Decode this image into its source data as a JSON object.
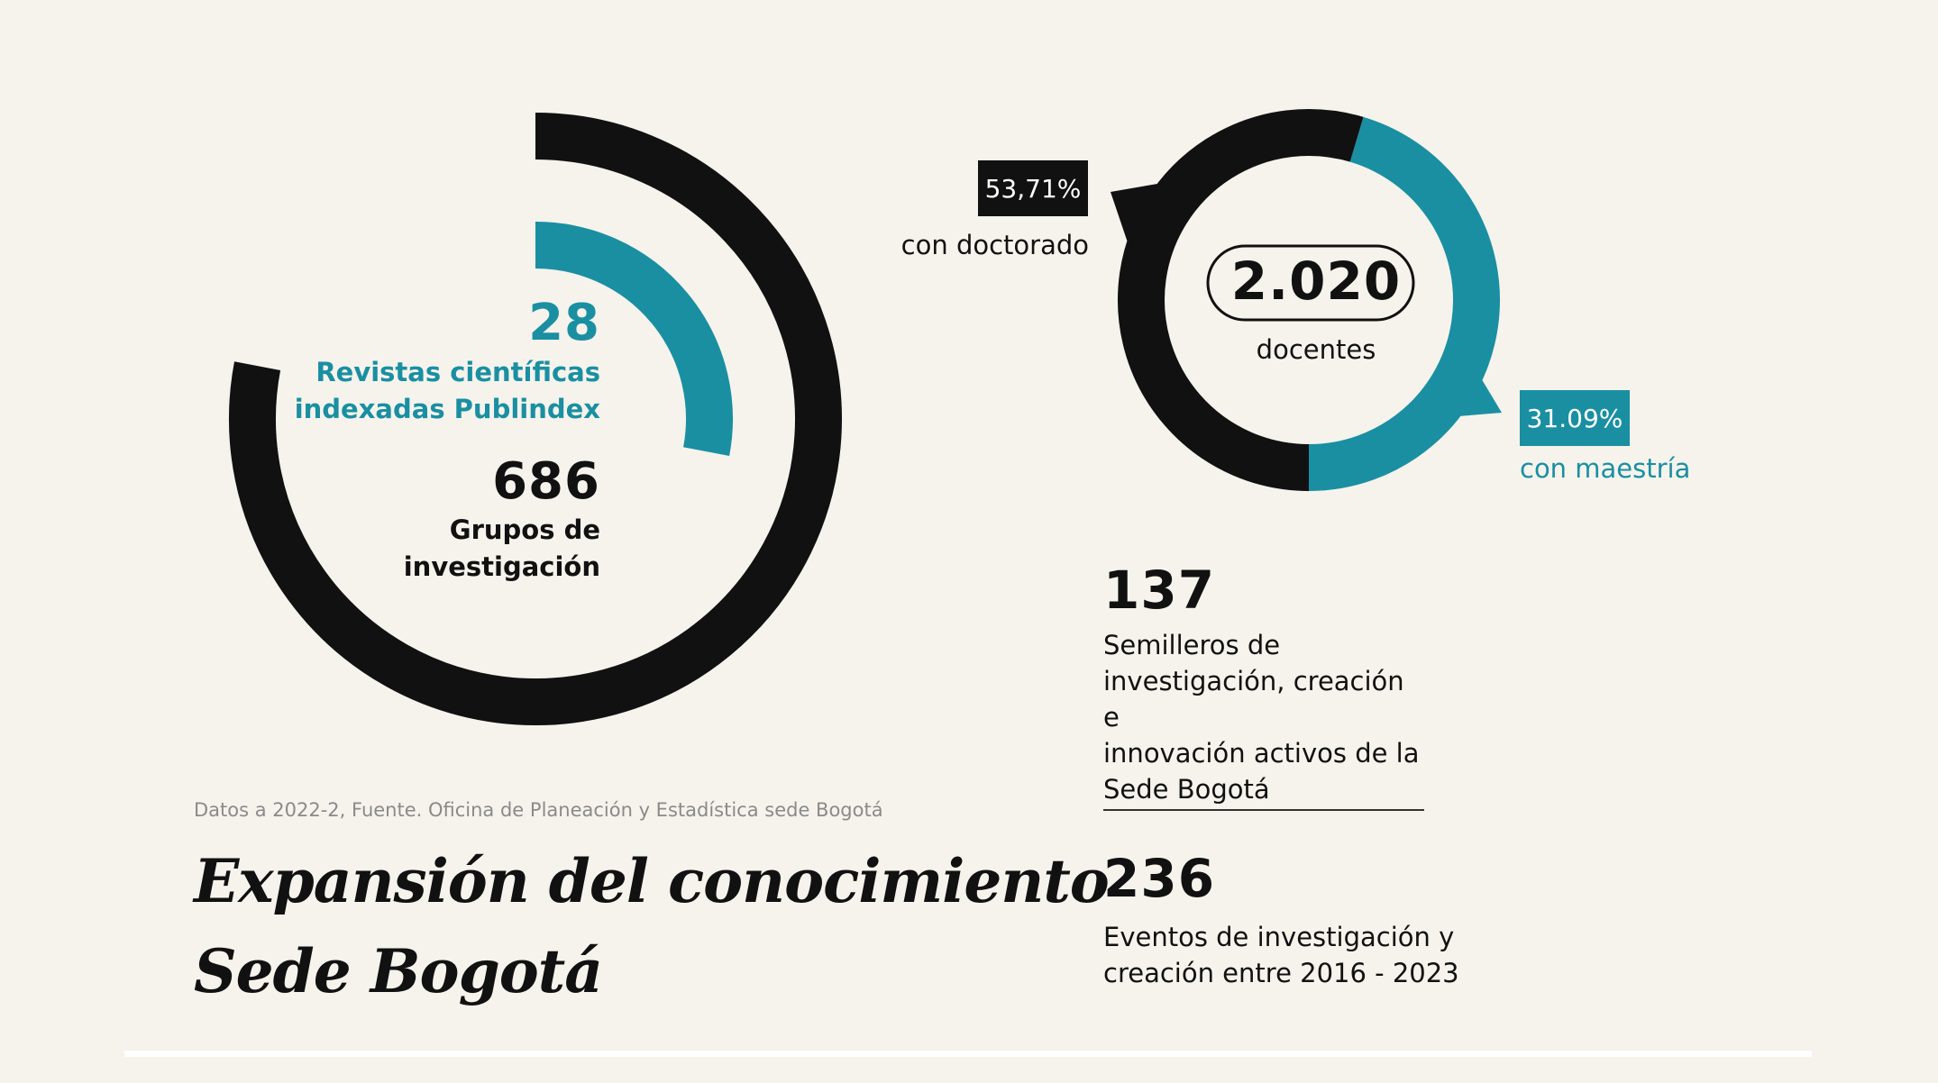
{
  "colors": {
    "background": "#f5f3ec",
    "black": "#111111",
    "teal": "#1a8fa2",
    "divider": "#333333",
    "source": "#8a8a8a"
  },
  "chart_data": [
    {
      "type": "radial-bar",
      "series": [
        {
          "name": "Grupos de investigación",
          "value": 686,
          "arc_fraction": 0.78,
          "color": "#111111"
        },
        {
          "name": "Revistas científicas indexadas Publindex",
          "value": 28,
          "arc_fraction": 0.28,
          "color": "#1a8fa2"
        }
      ]
    },
    {
      "type": "donut",
      "total": "2.020",
      "total_label": "docentes",
      "slices": [
        {
          "label": "con doctorado",
          "value_text": "53,71%",
          "value": 53.71,
          "color": "#111111"
        },
        {
          "label": "con maestría",
          "value_text": "31.09%",
          "value": 31.09,
          "color": "#1a8fa2"
        }
      ]
    }
  ],
  "radial": {
    "revistas_value": "28",
    "revistas_label_1": "Revistas científicas",
    "revistas_label_2": "indexadas Publindex",
    "grupos_value": "686",
    "grupos_label_1": "Grupos de",
    "grupos_label_2": "investigación"
  },
  "donut": {
    "doctorado_pct": "53,71%",
    "doctorado_label": "con doctorado",
    "maestria_pct": "31.09%",
    "maestria_label": "con maestría",
    "total": "2.020",
    "total_label": "docentes"
  },
  "semilleros": {
    "value": "137",
    "lines": [
      "Semilleros de",
      "investigación, creación e",
      "innovación activos de la",
      "Sede Bogotá"
    ]
  },
  "eventos": {
    "value": "236",
    "lines": [
      "Eventos de investigación y",
      "creación entre 2016 - 2023"
    ]
  },
  "source": "Datos a 2022-2, Fuente. Oficina de Planeación y Estadística sede Bogotá",
  "title": {
    "line1": "Expansión del conocimiento",
    "line2": "Sede Bogotá"
  }
}
